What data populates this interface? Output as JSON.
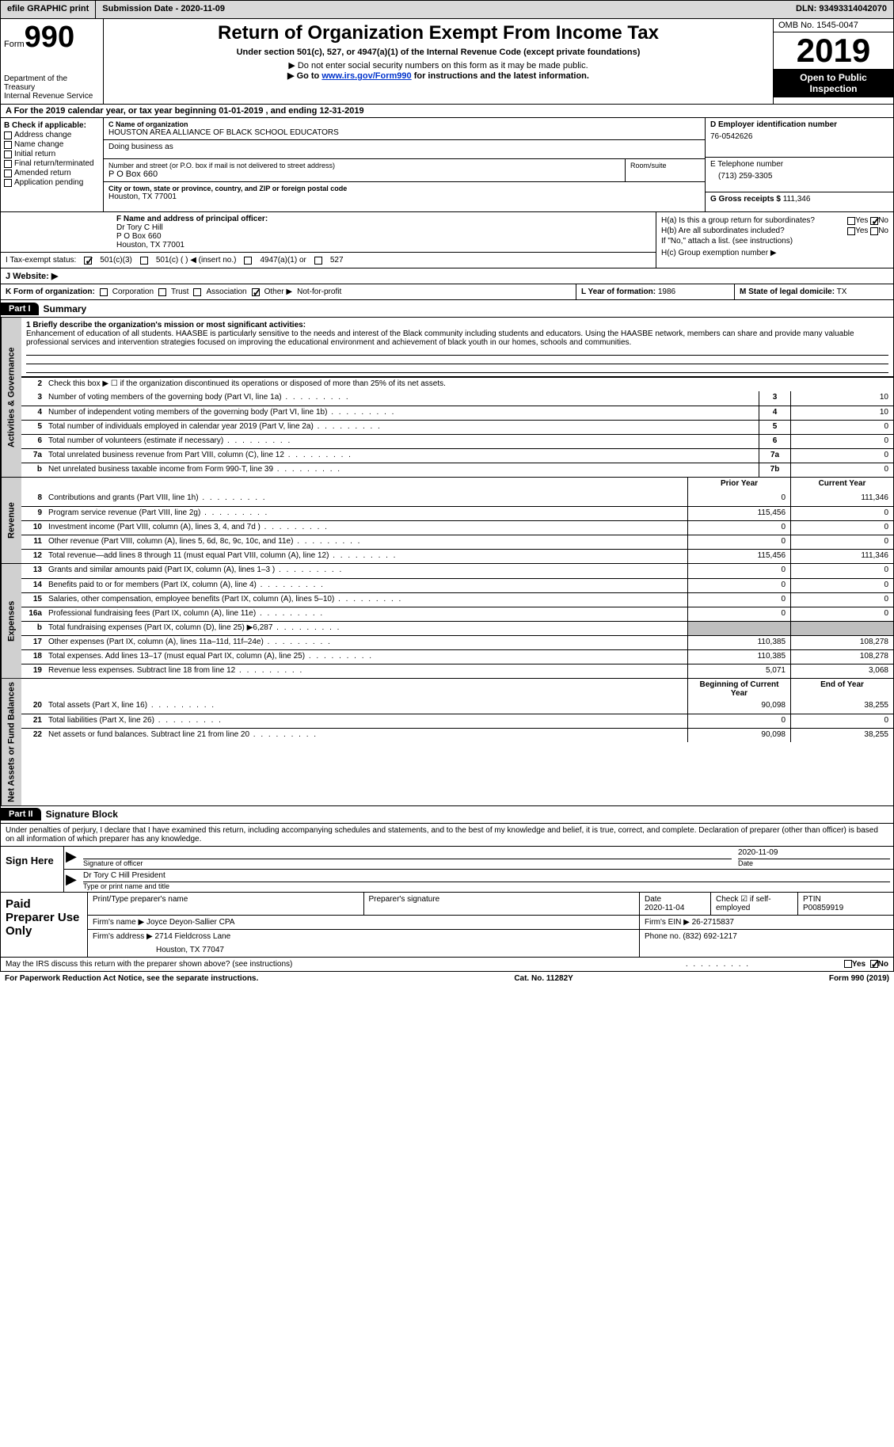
{
  "topbar": {
    "efile_label": "efile GRAPHIC print",
    "submission": "Submission Date - 2020-11-09",
    "dln": "DLN: 93493314042070"
  },
  "header": {
    "form_label": "Form",
    "form_number": "990",
    "dept": "Department of the Treasury\nInternal Revenue Service",
    "title": "Return of Organization Exempt From Income Tax",
    "subtitle": "Under section 501(c), 527, or 4947(a)(1) of the Internal Revenue Code (except private foundations)",
    "note1": "▶ Do not enter social security numbers on this form as it may be made public.",
    "note2_pre": "▶ Go to ",
    "note2_link": "www.irs.gov/Form990",
    "note2_post": " for instructions and the latest information.",
    "omb": "OMB No. 1545-0047",
    "year": "2019",
    "open_inspection": "Open to Public Inspection"
  },
  "row_a": "A For the 2019 calendar year, or tax year beginning 01-01-2019   , and ending 12-31-2019",
  "col_b": {
    "label": "B Check if applicable:",
    "items": [
      "Address change",
      "Name change",
      "Initial return",
      "Final return/terminated",
      "Amended return",
      "Application pending"
    ]
  },
  "col_c": {
    "name_label": "C Name of organization",
    "name": "HOUSTON AREA ALLIANCE OF BLACK SCHOOL EDUCATORS",
    "dba_label": "Doing business as",
    "addr_label": "Number and street (or P.O. box if mail is not delivered to street address)",
    "room_label": "Room/suite",
    "addr": "P O Box 660",
    "city_label": "City or town, state or province, country, and ZIP or foreign postal code",
    "city": "Houston, TX  77001"
  },
  "col_d": {
    "ein_label": "D Employer identification number",
    "ein": "76-0542626",
    "tel_label": "E Telephone number",
    "tel": "(713) 259-3305",
    "gross_label": "G Gross receipts $",
    "gross": "111,346"
  },
  "row_f": {
    "label": "F Name and address of principal officer:",
    "name": "Dr Tory C Hill",
    "addr": "P O Box 660",
    "city": "Houston, TX  77001"
  },
  "tax_status": {
    "label_i": "I   Tax-exempt status:",
    "opt1": "501(c)(3)",
    "opt2": "501(c) (  ) ◀ (insert no.)",
    "opt3": "4947(a)(1) or",
    "opt4": "527"
  },
  "col_h": {
    "ha": "H(a)  Is this a group return for subordinates?",
    "hb": "H(b)  Are all subordinates included?",
    "hb_note": "If \"No,\" attach a list. (see instructions)",
    "hc": "H(c)  Group exemption number ▶",
    "yes": "Yes",
    "no": "No"
  },
  "row_j": {
    "label": "J   Website: ▶"
  },
  "row_k": {
    "label": "K Form of organization:",
    "opts": [
      "Corporation",
      "Trust",
      "Association",
      "Other ▶"
    ],
    "other_val": "Not-for-profit"
  },
  "row_l": {
    "label": "L Year of formation:",
    "val": "1986"
  },
  "row_m": {
    "label": "M State of legal domicile:",
    "val": "TX"
  },
  "part1": {
    "header": "Part I",
    "title": "Summary",
    "desc_label": "1  Briefly describe the organization's mission or most significant activities:",
    "mission": "Enhancement of education of all students. HAASBE is particularly sensitive to the needs and interest of the Black community including students and educators. Using the HAASBE network, members can share and provide many valuable professional services and intervention strategies focused on improving the educational environment and achievement of black youth in our homes, schools and communities.",
    "line2": "Check this box ▶ ☐  if the organization discontinued its operations or disposed of more than 25% of its net assets."
  },
  "sidebar": {
    "activities": "Activities & Governance",
    "revenue": "Revenue",
    "expenses": "Expenses",
    "netassets": "Net Assets or Fund Balances"
  },
  "gov_rows": [
    {
      "n": "3",
      "label": "Number of voting members of the governing body (Part VI, line 1a)",
      "box": "3",
      "val": "10"
    },
    {
      "n": "4",
      "label": "Number of independent voting members of the governing body (Part VI, line 1b)",
      "box": "4",
      "val": "10"
    },
    {
      "n": "5",
      "label": "Total number of individuals employed in calendar year 2019 (Part V, line 2a)",
      "box": "5",
      "val": "0"
    },
    {
      "n": "6",
      "label": "Total number of volunteers (estimate if necessary)",
      "box": "6",
      "val": "0"
    },
    {
      "n": "7a",
      "label": "Total unrelated business revenue from Part VIII, column (C), line 12",
      "box": "7a",
      "val": "0"
    },
    {
      "n": "b",
      "label": "Net unrelated business taxable income from Form 990-T, line 39",
      "box": "7b",
      "val": "0"
    }
  ],
  "col_headers": {
    "prior": "Prior Year",
    "current": "Current Year",
    "begin": "Beginning of Current Year",
    "end": "End of Year"
  },
  "rev_rows": [
    {
      "n": "8",
      "label": "Contributions and grants (Part VIII, line 1h)",
      "py": "0",
      "cy": "111,346"
    },
    {
      "n": "9",
      "label": "Program service revenue (Part VIII, line 2g)",
      "py": "115,456",
      "cy": "0"
    },
    {
      "n": "10",
      "label": "Investment income (Part VIII, column (A), lines 3, 4, and 7d )",
      "py": "0",
      "cy": "0"
    },
    {
      "n": "11",
      "label": "Other revenue (Part VIII, column (A), lines 5, 6d, 8c, 9c, 10c, and 11e)",
      "py": "0",
      "cy": "0"
    },
    {
      "n": "12",
      "label": "Total revenue—add lines 8 through 11 (must equal Part VIII, column (A), line 12)",
      "py": "115,456",
      "cy": "111,346"
    }
  ],
  "exp_rows": [
    {
      "n": "13",
      "label": "Grants and similar amounts paid (Part IX, column (A), lines 1–3 )",
      "py": "0",
      "cy": "0"
    },
    {
      "n": "14",
      "label": "Benefits paid to or for members (Part IX, column (A), line 4)",
      "py": "0",
      "cy": "0"
    },
    {
      "n": "15",
      "label": "Salaries, other compensation, employee benefits (Part IX, column (A), lines 5–10)",
      "py": "0",
      "cy": "0"
    },
    {
      "n": "16a",
      "label": "Professional fundraising fees (Part IX, column (A), line 11e)",
      "py": "0",
      "cy": "0"
    },
    {
      "n": "b",
      "label": "Total fundraising expenses (Part IX, column (D), line 25) ▶6,287",
      "py": "",
      "cy": "",
      "shaded": true
    },
    {
      "n": "17",
      "label": "Other expenses (Part IX, column (A), lines 11a–11d, 11f–24e)",
      "py": "110,385",
      "cy": "108,278"
    },
    {
      "n": "18",
      "label": "Total expenses. Add lines 13–17 (must equal Part IX, column (A), line 25)",
      "py": "110,385",
      "cy": "108,278"
    },
    {
      "n": "19",
      "label": "Revenue less expenses. Subtract line 18 from line 12",
      "py": "5,071",
      "cy": "3,068"
    }
  ],
  "na_rows": [
    {
      "n": "20",
      "label": "Total assets (Part X, line 16)",
      "py": "90,098",
      "cy": "38,255"
    },
    {
      "n": "21",
      "label": "Total liabilities (Part X, line 26)",
      "py": "0",
      "cy": "0"
    },
    {
      "n": "22",
      "label": "Net assets or fund balances. Subtract line 21 from line 20",
      "py": "90,098",
      "cy": "38,255"
    }
  ],
  "part2": {
    "header": "Part II",
    "title": "Signature Block",
    "declaration": "Under penalties of perjury, I declare that I have examined this return, including accompanying schedules and statements, and to the best of my knowledge and belief, it is true, correct, and complete. Declaration of preparer (other than officer) is based on all information of which preparer has any knowledge.",
    "sign_here": "Sign Here",
    "sig_officer_lbl": "Signature of officer",
    "date_lbl": "Date",
    "sig_date": "2020-11-09",
    "name_title": "Dr Tory C Hill  President",
    "name_title_lbl": "Type or print name and title"
  },
  "preparer": {
    "label": "Paid Preparer Use Only",
    "print_lbl": "Print/Type preparer's name",
    "sig_lbl": "Preparer's signature",
    "date_lbl": "Date",
    "date": "2020-11-04",
    "check_lbl": "Check ☑ if self-employed",
    "ptin_lbl": "PTIN",
    "ptin": "P00859919",
    "firm_name_lbl": "Firm's name   ▶",
    "firm_name": "Joyce Deyon-Sallier CPA",
    "firm_ein_lbl": "Firm's EIN ▶",
    "firm_ein": "26-2715837",
    "firm_addr_lbl": "Firm's address ▶",
    "firm_addr": "2714 Fieldcross Lane",
    "firm_city": "Houston, TX  77047",
    "phone_lbl": "Phone no.",
    "phone": "(832) 692-1217"
  },
  "bottom": {
    "discuss": "May the IRS discuss this return with the preparer shown above? (see instructions)",
    "yes": "Yes",
    "no": "No"
  },
  "footer": {
    "left": "For Paperwork Reduction Act Notice, see the separate instructions.",
    "center": "Cat. No. 11282Y",
    "right": "Form 990 (2019)"
  }
}
